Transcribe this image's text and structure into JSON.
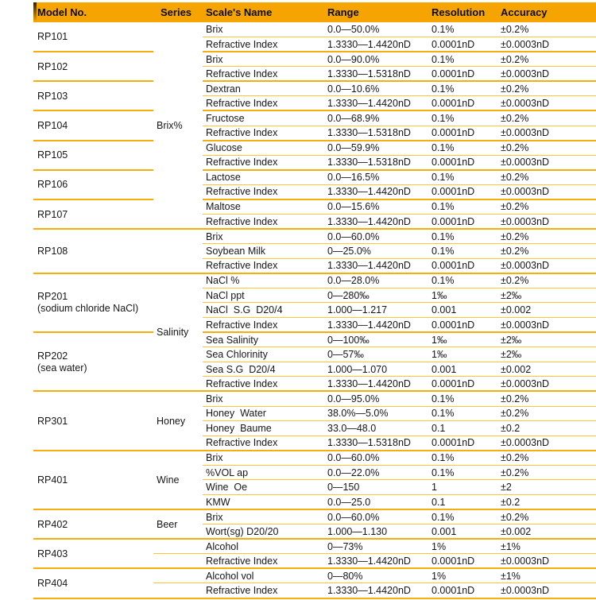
{
  "colors": {
    "header_bg": "#F5A402",
    "row_line": "#FFC535",
    "group_line": "#F8AD0F",
    "text": "#161616"
  },
  "header": {
    "model": "Model No.",
    "series": "Series",
    "scale": "Scale's Name",
    "range": "Range",
    "resolution": "Resolution",
    "accuracy": "Accuracy"
  },
  "series": {
    "brix": "Brix%",
    "salinity": "Salinity",
    "honey": "Honey",
    "wine": "Wine",
    "beer": "Beer"
  },
  "groups": [
    {
      "model": "RP101",
      "rows": [
        {
          "scale": "Brix",
          "range": "0.0—50.0%",
          "resolution": "0.1%",
          "accuracy": "±0.2%"
        },
        {
          "scale": "Refractive Index",
          "range": "1.3330—1.4420nD",
          "resolution": "0.0001nD",
          "accuracy": "±0.0003nD"
        }
      ]
    },
    {
      "model": "RP102",
      "rows": [
        {
          "scale": "Brix",
          "range": "0.0—90.0%",
          "resolution": "0.1%",
          "accuracy": "±0.2%"
        },
        {
          "scale": "Refractive Index",
          "range": "1.3330—1.5318nD",
          "resolution": "0.0001nD",
          "accuracy": "±0.0003nD"
        }
      ]
    },
    {
      "model": "RP103",
      "rows": [
        {
          "scale": "Dextran",
          "range": "0.0—10.6%",
          "resolution": "0.1%",
          "accuracy": "±0.2%"
        },
        {
          "scale": "Refractive Index",
          "range": "1.3330—1.4420nD",
          "resolution": "0.0001nD",
          "accuracy": "±0.0003nD"
        }
      ]
    },
    {
      "model": "RP104",
      "rows": [
        {
          "scale": "Fructose",
          "range": "0.0—68.9%",
          "resolution": "0.1%",
          "accuracy": "±0.2%"
        },
        {
          "scale": "Refractive Index",
          "range": "1.3330—1.5318nD",
          "resolution": "0.0001nD",
          "accuracy": "±0.0003nD"
        }
      ]
    },
    {
      "model": "RP105",
      "rows": [
        {
          "scale": "Glucose",
          "range": "0.0—59.9%",
          "resolution": "0.1%",
          "accuracy": "±0.2%"
        },
        {
          "scale": "Refractive Index",
          "range": "1.3330—1.5318nD",
          "resolution": "0.0001nD",
          "accuracy": "±0.0003nD"
        }
      ]
    },
    {
      "model": "RP106",
      "rows": [
        {
          "scale": "Lactose",
          "range": "0.0—16.5%",
          "resolution": "0.1%",
          "accuracy": "±0.2%"
        },
        {
          "scale": "Refractive Index",
          "range": "1.3330—1.4420nD",
          "resolution": "0.0001nD",
          "accuracy": "±0.0003nD"
        }
      ]
    },
    {
      "model": "RP107",
      "rows": [
        {
          "scale": "Maltose",
          "range": "0.0—15.6%",
          "resolution": "0.1%",
          "accuracy": "±0.2%"
        },
        {
          "scale": "Refractive Index",
          "range": "1.3330—1.4420nD",
          "resolution": "0.0001nD",
          "accuracy": "±0.0003nD"
        }
      ]
    },
    {
      "model": "RP108",
      "rows": [
        {
          "scale": "Brix",
          "range": "0.0—60.0%",
          "resolution": "0.1%",
          "accuracy": "±0.2%"
        },
        {
          "scale": "Soybean Milk",
          "range": "0—25.0%",
          "resolution": "0.1%",
          "accuracy": "±0.2%"
        },
        {
          "scale": "Refractive Index",
          "range": "1.3330—1.4420nD",
          "resolution": "0.0001nD",
          "accuracy": "±0.0003nD"
        }
      ]
    },
    {
      "model": "RP201",
      "sub": "(sodium chloride NaCl)",
      "rows": [
        {
          "scale": "NaCl %",
          "range": "0.0—28.0%",
          "resolution": "0.1%",
          "accuracy": "±0.2%"
        },
        {
          "scale": "NaCl ppt",
          "range": "0—280‰",
          "resolution": "1‰",
          "accuracy": "±2‰"
        },
        {
          "scale": "NaCl  S.G  D20/4",
          "range": "1.000—1.217",
          "resolution": "0.001",
          "accuracy": "±0.002"
        },
        {
          "scale": "Refractive Index",
          "range": "1.3330—1.4420nD",
          "resolution": "0.0001nD",
          "accuracy": "±0.0003nD"
        }
      ]
    },
    {
      "model": "RP202",
      "sub": "(sea water)",
      "rows": [
        {
          "scale": "Sea Salinity",
          "range": "0—100‰",
          "resolution": "1‰",
          "accuracy": "±2‰"
        },
        {
          "scale": "Sea Chlorinity",
          "range": "0—57‰",
          "resolution": "1‰",
          "accuracy": "±2‰"
        },
        {
          "scale": "Sea S.G  D20/4",
          "range": "1.000—1.070",
          "resolution": "0.001",
          "accuracy": "±0.002"
        },
        {
          "scale": "Refractive Index",
          "range": "1.3330—1.4420nD",
          "resolution": "0.0001nD",
          "accuracy": "±0.0003nD"
        }
      ]
    },
    {
      "model": "RP301",
      "rows": [
        {
          "scale": "Brix",
          "range": "0.0—95.0%",
          "resolution": "0.1%",
          "accuracy": "±0.2%"
        },
        {
          "scale": "Honey  Water",
          "range": "38.0%—5.0%",
          "resolution": "0.1%",
          "accuracy": "±0.2%"
        },
        {
          "scale": "Honey  Baume",
          "range": "33.0—48.0",
          "resolution": "0.1",
          "accuracy": "±0.2"
        },
        {
          "scale": "Refractive Index",
          "range": "1.3330—1.5318nD",
          "resolution": "0.0001nD",
          "accuracy": "±0.0003nD"
        }
      ]
    },
    {
      "model": "RP401",
      "rows": [
        {
          "scale": "Brix",
          "range": "0.0—60.0%",
          "resolution": "0.1%",
          "accuracy": "±0.2%"
        },
        {
          "scale": "%VOL ap",
          "range": "0.0—22.0%",
          "resolution": "0.1%",
          "accuracy": "±0.2%"
        },
        {
          "scale": "Wine  Oe",
          "range": "0—150",
          "resolution": "1",
          "accuracy": "±2"
        },
        {
          "scale": "KMW",
          "range": "0.0—25.0",
          "resolution": "0.1",
          "accuracy": "±0.2"
        }
      ]
    },
    {
      "model": "RP402",
      "rows": [
        {
          "scale": "Brix",
          "range": "0.0—60.0%",
          "resolution": "0.1%",
          "accuracy": "±0.2%"
        },
        {
          "scale": "Wort(sg) D20/20",
          "range": "1.000—1.130",
          "resolution": "0.001",
          "accuracy": "±0.002"
        }
      ]
    },
    {
      "model": "RP403",
      "rows": [
        {
          "scale": "Alcohol",
          "range": "0—73%",
          "resolution": "1%",
          "accuracy": "±1%"
        },
        {
          "scale": "Refractive Index",
          "range": "1.3330—1.4420nD",
          "resolution": "0.0001nD",
          "accuracy": "±0.0003nD"
        }
      ]
    },
    {
      "model": "RP404",
      "rows": [
        {
          "scale": "Alcohol vol",
          "range": "0—80%",
          "resolution": "1%",
          "accuracy": "±1%"
        },
        {
          "scale": "Refractive Index",
          "range": "1.3330—1.4420nD",
          "resolution": "0.0001nD",
          "accuracy": "±0.0003nD"
        }
      ]
    }
  ]
}
